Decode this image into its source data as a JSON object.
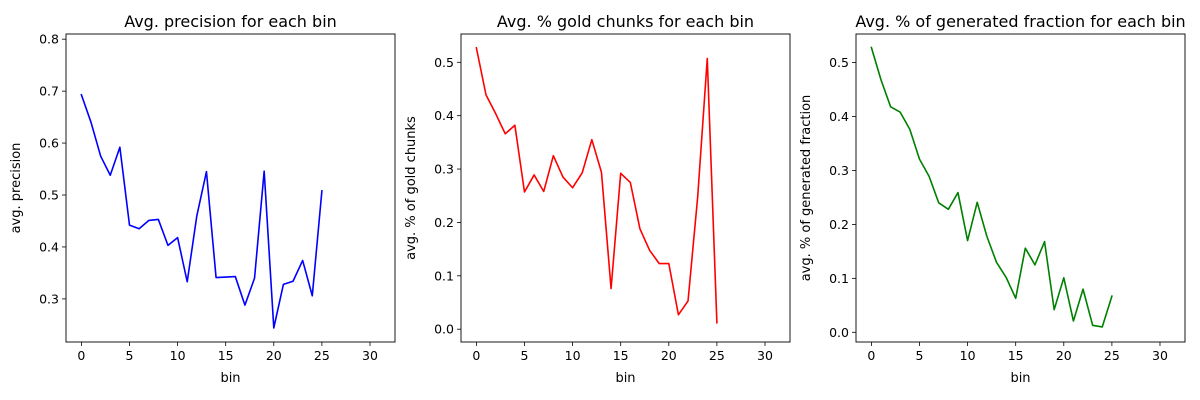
{
  "chart_data": [
    {
      "type": "line",
      "title": "Avg. precision for each bin",
      "xlabel": "bin",
      "ylabel": "avg. precision",
      "xlim": [
        -1.6,
        32.6
      ],
      "ylim": [
        0.217,
        0.81
      ],
      "xticks": [
        0,
        5,
        10,
        15,
        20,
        25,
        30
      ],
      "yticks": [
        0.3,
        0.4,
        0.5,
        0.6,
        0.7,
        0.8
      ],
      "xtick_labels": [
        "0",
        "5",
        "10",
        "15",
        "20",
        "25",
        "30"
      ],
      "ytick_labels": [
        "0.3",
        "0.4",
        "0.5",
        "0.6",
        "0.7",
        "0.8"
      ],
      "grid": false,
      "series": [
        {
          "color": "#0000ff",
          "x": [
            0,
            1,
            2,
            3,
            4,
            5,
            6,
            7,
            8,
            9,
            10,
            11,
            12,
            13,
            14,
            15,
            16,
            17,
            18,
            19,
            20,
            21,
            22,
            23,
            24,
            25
          ],
          "y": [
            0.693,
            0.64,
            0.575,
            0.538,
            0.592,
            0.442,
            0.435,
            0.451,
            0.453,
            0.403,
            0.418,
            0.333,
            0.46,
            0.545,
            0.341,
            0.342,
            0.343,
            0.288,
            0.34,
            0.546,
            0.244,
            0.328,
            0.334,
            0.374,
            0.306,
            0.508
          ]
        }
      ]
    },
    {
      "type": "line",
      "title": "Avg. % gold chunks for each bin",
      "xlabel": "bin",
      "ylabel": "avg. % of gold chunks",
      "xlim": [
        -1.6,
        32.6
      ],
      "ylim": [
        -0.024,
        0.553
      ],
      "xticks": [
        0,
        5,
        10,
        15,
        20,
        25,
        30
      ],
      "yticks": [
        0.0,
        0.1,
        0.2,
        0.3,
        0.4,
        0.5
      ],
      "xtick_labels": [
        "0",
        "5",
        "10",
        "15",
        "20",
        "25",
        "30"
      ],
      "ytick_labels": [
        "0.0",
        "0.1",
        "0.2",
        "0.3",
        "0.4",
        "0.5"
      ],
      "grid": false,
      "series": [
        {
          "color": "#ff0000",
          "x": [
            0,
            1,
            2,
            3,
            4,
            5,
            6,
            7,
            8,
            9,
            10,
            11,
            12,
            13,
            14,
            15,
            16,
            17,
            18,
            19,
            20,
            21,
            22,
            23,
            24,
            25
          ],
          "y": [
            0.527,
            0.439,
            0.404,
            0.366,
            0.382,
            0.257,
            0.289,
            0.258,
            0.325,
            0.285,
            0.265,
            0.293,
            0.355,
            0.294,
            0.076,
            0.292,
            0.275,
            0.188,
            0.148,
            0.123,
            0.123,
            0.027,
            0.053,
            0.247,
            0.507,
            0.012
          ]
        }
      ]
    },
    {
      "type": "line",
      "title": "Avg. % of generated fraction for each bin",
      "xlabel": "bin",
      "ylabel": "avg. % of generated fraction",
      "xlim": [
        -1.6,
        32.6
      ],
      "ylim": [
        -0.018,
        0.553
      ],
      "xticks": [
        0,
        5,
        10,
        15,
        20,
        25,
        30
      ],
      "yticks": [
        0.0,
        0.1,
        0.2,
        0.3,
        0.4,
        0.5
      ],
      "xtick_labels": [
        "0",
        "5",
        "10",
        "15",
        "20",
        "25",
        "30"
      ],
      "ytick_labels": [
        "0.0",
        "0.1",
        "0.2",
        "0.3",
        "0.4",
        "0.5"
      ],
      "grid": false,
      "series": [
        {
          "color": "#008000",
          "x": [
            0,
            1,
            2,
            3,
            4,
            5,
            6,
            7,
            8,
            9,
            10,
            11,
            12,
            13,
            14,
            15,
            16,
            17,
            18,
            19,
            20,
            21,
            22,
            23,
            24,
            25
          ],
          "y": [
            0.528,
            0.468,
            0.418,
            0.408,
            0.376,
            0.321,
            0.289,
            0.24,
            0.228,
            0.259,
            0.17,
            0.241,
            0.178,
            0.13,
            0.102,
            0.063,
            0.156,
            0.125,
            0.168,
            0.042,
            0.101,
            0.021,
            0.08,
            0.013,
            0.01,
            0.067
          ]
        }
      ]
    }
  ]
}
